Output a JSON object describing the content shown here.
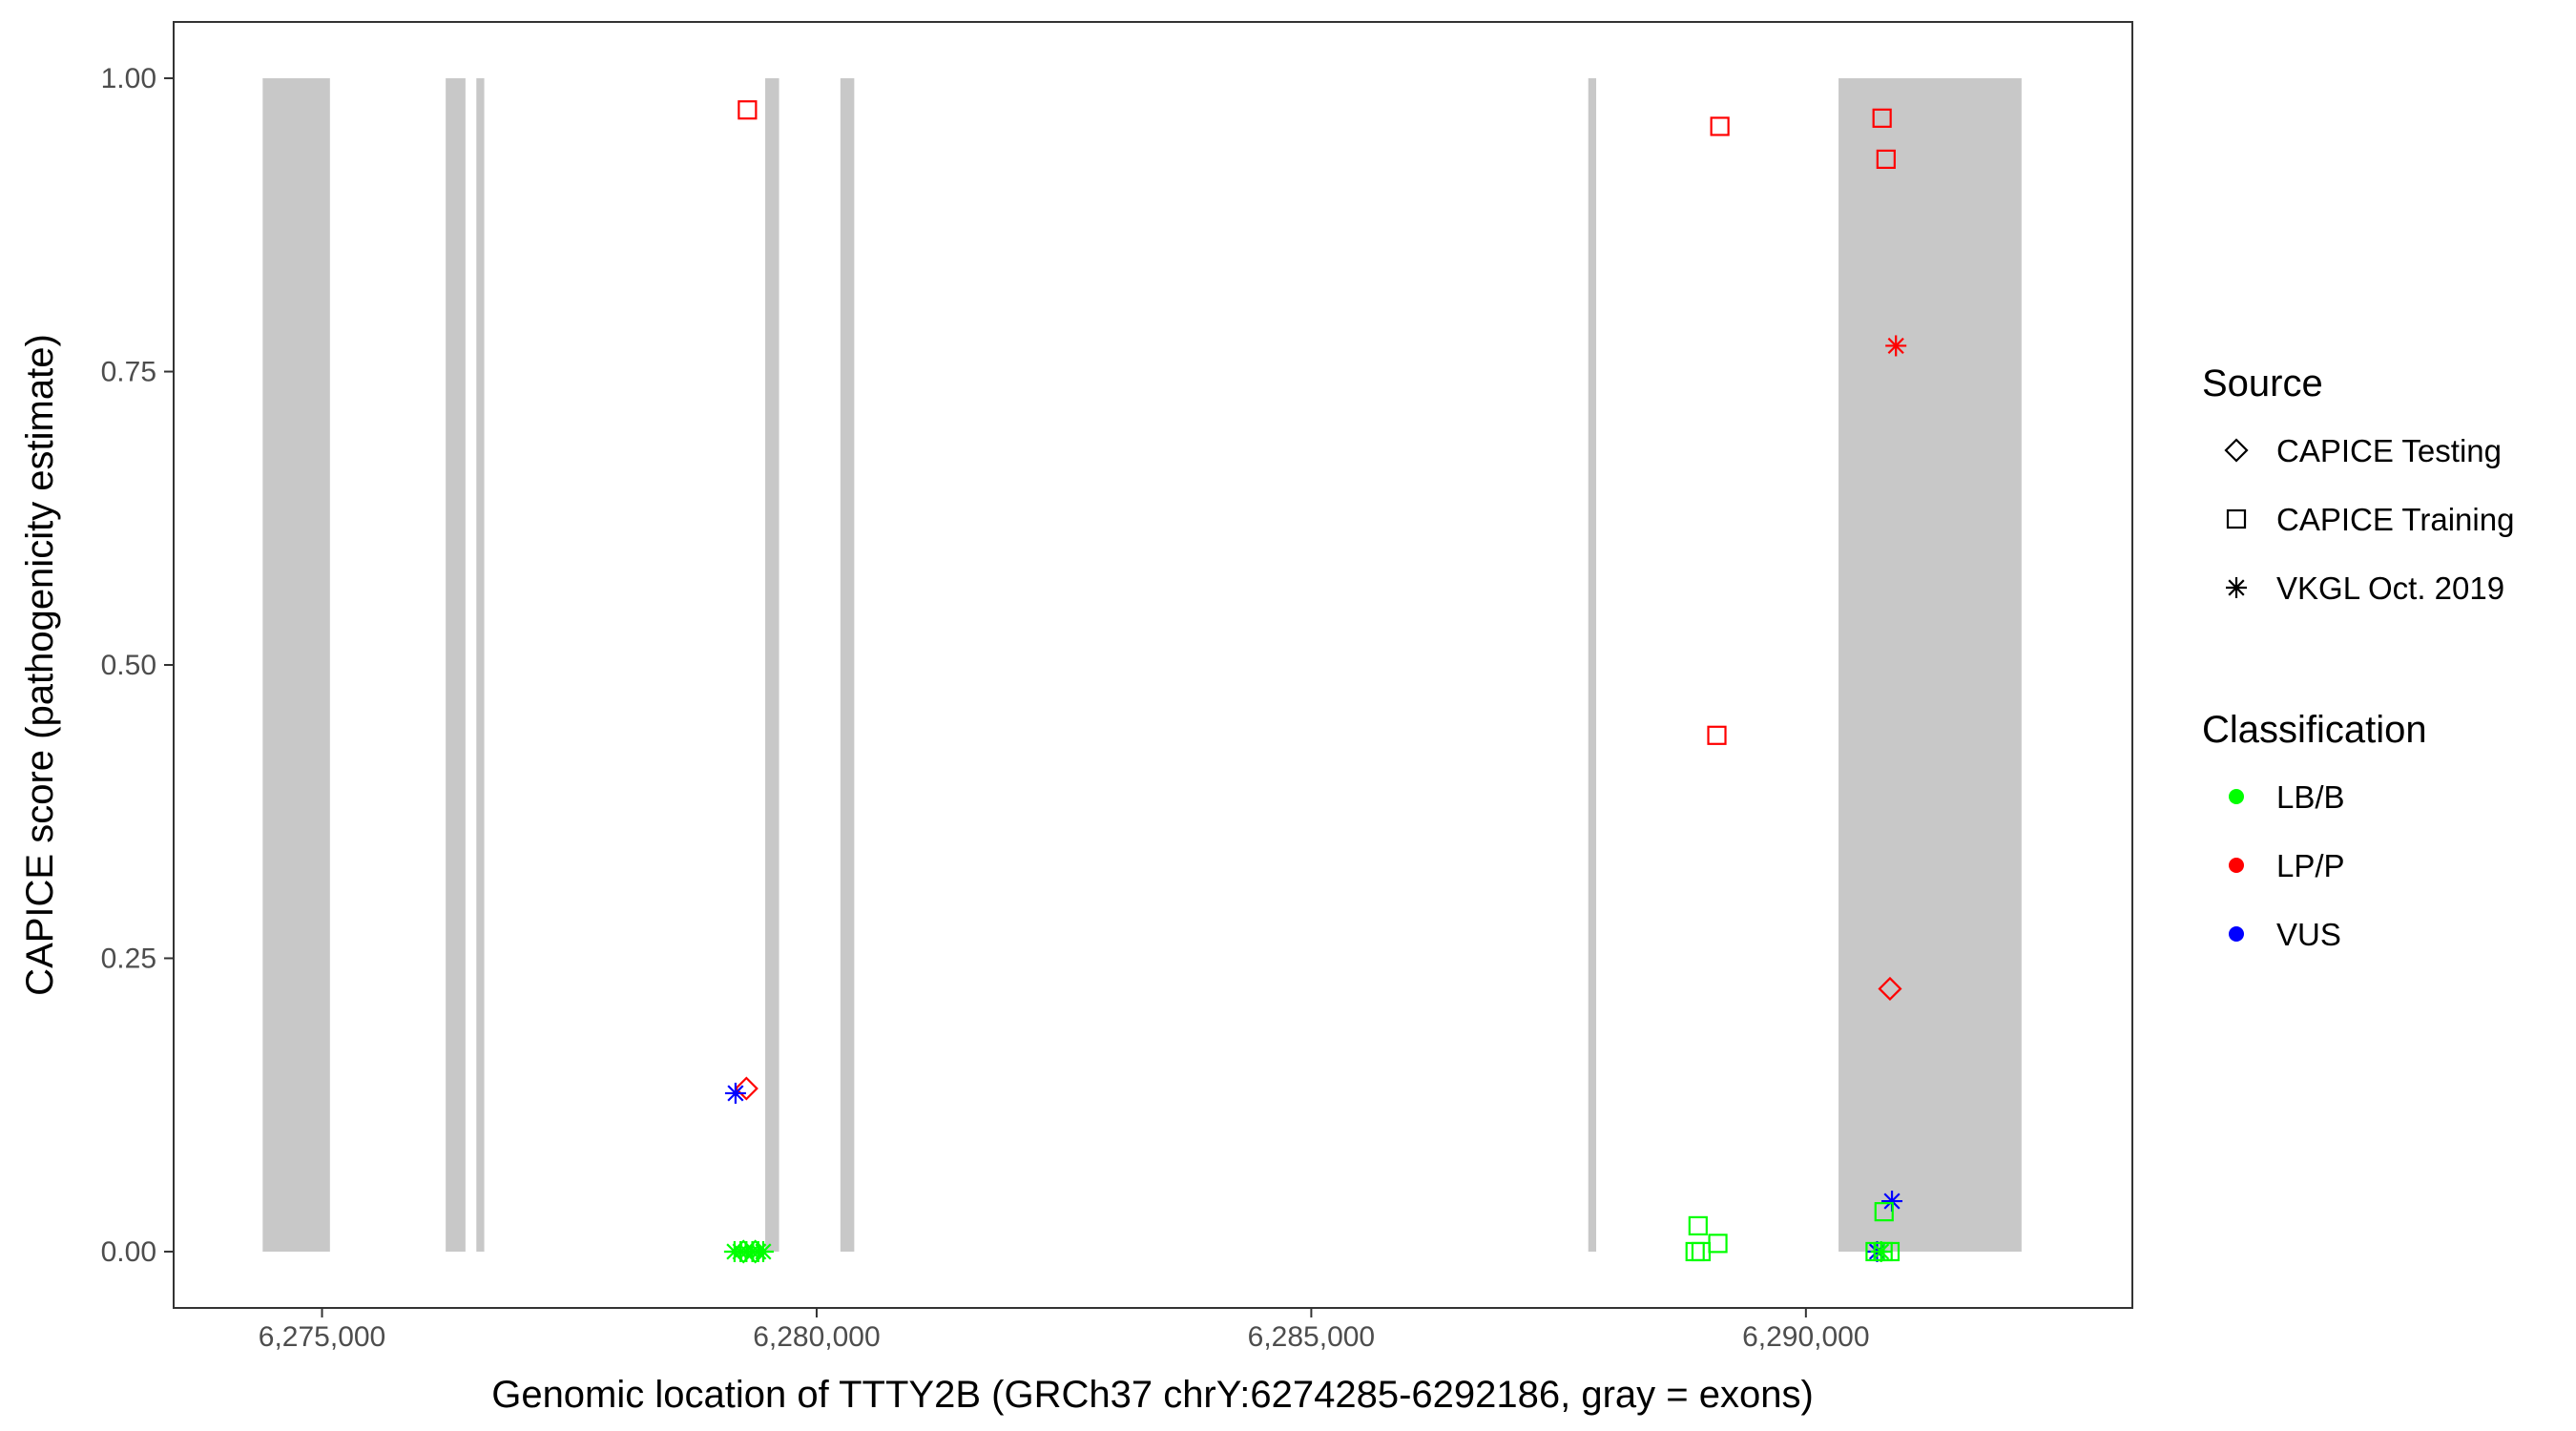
{
  "chart_data": {
    "type": "scatter",
    "xlabel": "Genomic location of TTTY2B (GRCh37 chrY:6274285-6292186, gray = exons)",
    "ylabel": "CAPICE score (pathogenicity estimate)",
    "xlim": [
      6273500,
      6293300
    ],
    "ylim": [
      -0.048,
      1.048
    ],
    "x_ticks": [
      6275000,
      6280000,
      6285000,
      6290000
    ],
    "x_tick_labels": [
      "6,275,000",
      "6,280,000",
      "6,285,000",
      "6,290,000"
    ],
    "y_ticks": [
      0,
      0.25,
      0.5,
      0.75,
      1.0
    ],
    "y_tick_labels": [
      "0.00",
      "0.25",
      "0.50",
      "0.75",
      "1.00"
    ],
    "grid": false,
    "exon_color": "#c8c8c8",
    "exons": [
      {
        "start": 6274400,
        "end": 6275080
      },
      {
        "start": 6276250,
        "end": 6276450
      },
      {
        "start": 6276560,
        "end": 6276640
      },
      {
        "start": 6279480,
        "end": 6279620
      },
      {
        "start": 6280240,
        "end": 6280380
      },
      {
        "start": 6287800,
        "end": 6287880
      },
      {
        "start": 6290330,
        "end": 6292180
      }
    ],
    "legend": {
      "position": "right",
      "source_title": "Source",
      "source_items": [
        {
          "label": "CAPICE Testing",
          "shape": "diamond"
        },
        {
          "label": "CAPICE Training",
          "shape": "square"
        },
        {
          "label": "VKGL Oct. 2019",
          "shape": "asterisk"
        }
      ],
      "class_title": "Classification",
      "class_items": [
        {
          "label": "LB/B",
          "color": "#00ff00"
        },
        {
          "label": "LP/P",
          "color": "#ff0000"
        },
        {
          "label": "VUS",
          "color": "#0000ff"
        }
      ]
    },
    "points": [
      {
        "x": 6279300,
        "y": 0.973,
        "source": "CAPICE Training",
        "class": "LP/P"
      },
      {
        "x": 6289130,
        "y": 0.959,
        "source": "CAPICE Training",
        "class": "LP/P"
      },
      {
        "x": 6290770,
        "y": 0.966,
        "source": "CAPICE Training",
        "class": "LP/P"
      },
      {
        "x": 6290810,
        "y": 0.931,
        "source": "CAPICE Training",
        "class": "LP/P"
      },
      {
        "x": 6290910,
        "y": 0.772,
        "source": "VKGL Oct. 2019",
        "class": "LP/P"
      },
      {
        "x": 6289100,
        "y": 0.44,
        "source": "CAPICE Training",
        "class": "LP/P"
      },
      {
        "x": 6290850,
        "y": 0.224,
        "source": "CAPICE Testing",
        "class": "LP/P"
      },
      {
        "x": 6279290,
        "y": 0.139,
        "source": "CAPICE Testing",
        "class": "LP/P"
      },
      {
        "x": 6279180,
        "y": 0.135,
        "source": "VKGL Oct. 2019",
        "class": "VUS"
      },
      {
        "x": 6290870,
        "y": 0.043,
        "source": "VKGL Oct. 2019",
        "class": "VUS"
      },
      {
        "x": 6290720,
        "y": 0.0,
        "source": "VKGL Oct. 2019",
        "class": "VUS"
      },
      {
        "x": 6290790,
        "y": 0.034,
        "source": "CAPICE Training",
        "class": "LB/B"
      },
      {
        "x": 6288910,
        "y": 0.022,
        "source": "CAPICE Training",
        "class": "LB/B"
      },
      {
        "x": 6289110,
        "y": 0.007,
        "source": "CAPICE Training",
        "class": "LB/B"
      },
      {
        "x": 6288880,
        "y": 0.0,
        "source": "CAPICE Training",
        "class": "LB/B"
      },
      {
        "x": 6288940,
        "y": 0.0,
        "source": "CAPICE Training",
        "class": "LB/B"
      },
      {
        "x": 6290700,
        "y": 0.0,
        "source": "CAPICE Training",
        "class": "LB/B"
      },
      {
        "x": 6290780,
        "y": 0.0,
        "source": "CAPICE Training",
        "class": "LB/B"
      },
      {
        "x": 6290850,
        "y": 0.0,
        "source": "CAPICE Training",
        "class": "LB/B"
      },
      {
        "x": 6279170,
        "y": 0.0,
        "source": "VKGL Oct. 2019",
        "class": "LB/B"
      },
      {
        "x": 6279230,
        "y": 0.0,
        "source": "VKGL Oct. 2019",
        "class": "LB/B"
      },
      {
        "x": 6279290,
        "y": 0.0,
        "source": "VKGL Oct. 2019",
        "class": "LB/B"
      },
      {
        "x": 6279350,
        "y": 0.0,
        "source": "VKGL Oct. 2019",
        "class": "LB/B"
      },
      {
        "x": 6279410,
        "y": 0.0,
        "source": "VKGL Oct. 2019",
        "class": "LB/B"
      },
      {
        "x": 6279460,
        "y": 0.0,
        "source": "VKGL Oct. 2019",
        "class": "LB/B"
      },
      {
        "x": 6279260,
        "y": 0.0,
        "source": "CAPICE Testing",
        "class": "LB/B"
      },
      {
        "x": 6279380,
        "y": 0.0,
        "source": "CAPICE Testing",
        "class": "LB/B"
      },
      {
        "x": 6290760,
        "y": 0.0,
        "source": "VKGL Oct. 2019",
        "class": "LB/B"
      }
    ]
  }
}
